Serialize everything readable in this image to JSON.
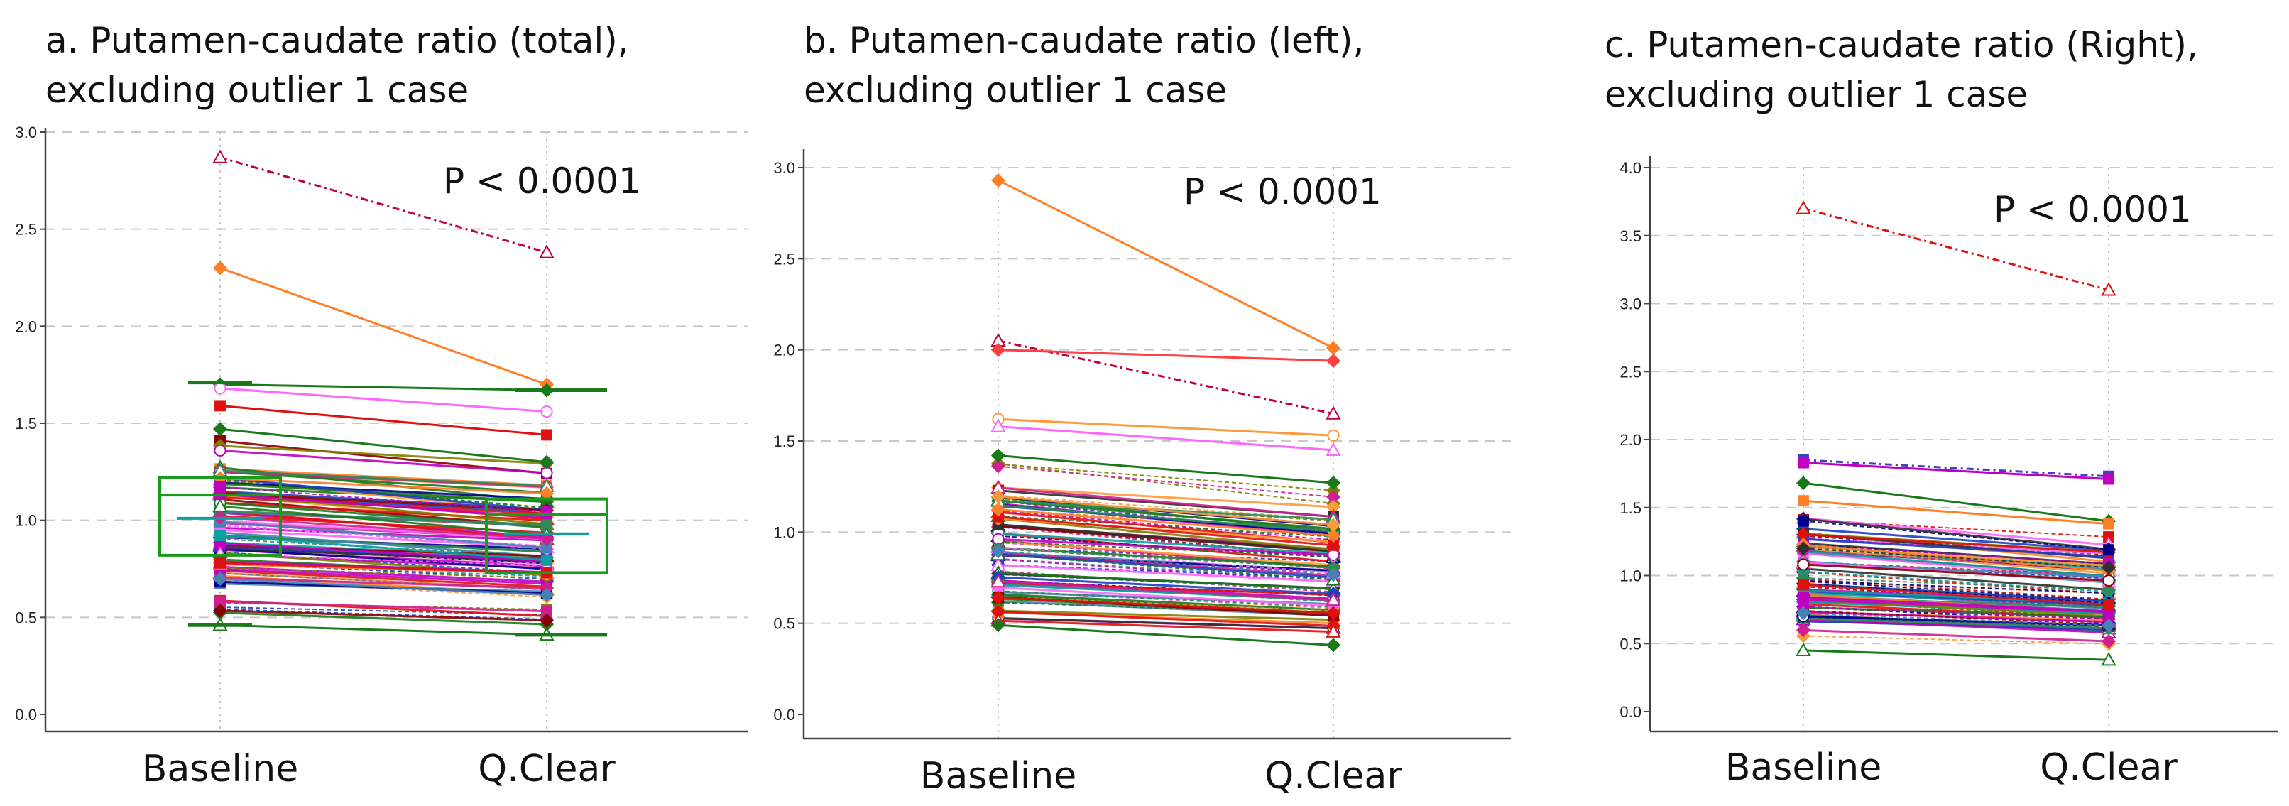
{
  "chart_data": [
    {
      "id": "a",
      "type": "line",
      "title_lines": [
        "a. Putamen-caudate ratio (total),",
        "excluding outlier 1 case"
      ],
      "categories": [
        "Baseline",
        "Q.Clear"
      ],
      "yticks": [
        "0.0",
        "0.5",
        "1.0",
        "1.5",
        "2.0",
        "2.5",
        "3.0"
      ],
      "ylim": [
        0,
        3.0
      ],
      "annotation": "P < 0.0001",
      "boxplots": [
        {
          "category": "Baseline",
          "q1": 0.82,
          "median": 1.13,
          "q3": 1.22,
          "whisker_low": 0.46,
          "whisker_high": 1.71
        },
        {
          "category": "Q.Clear",
          "q1": 0.73,
          "median": 1.03,
          "q3": 1.11,
          "whisker_low": 0.41,
          "whisker_high": 1.67
        }
      ],
      "mean_line": [
        1.01,
        0.93
      ],
      "highlighted_series": [
        {
          "baseline": 2.87,
          "qclear": 2.38,
          "marker": "triangle",
          "color": "#c00040",
          "dash": true
        },
        {
          "baseline": 2.3,
          "qclear": 1.7,
          "marker": "diamond",
          "color": "#ff7f27",
          "dash": false
        },
        {
          "baseline": 1.7,
          "qclear": 1.67,
          "marker": "diamond",
          "color": "#1a7a1a",
          "dash": false
        },
        {
          "baseline": 1.68,
          "qclear": 1.56,
          "marker": "circle",
          "color": "#ff66ff",
          "dash": false
        },
        {
          "baseline": 1.59,
          "qclear": 1.44,
          "marker": "square",
          "color": "#e01010",
          "dash": false
        },
        {
          "baseline": 1.47,
          "qclear": 1.3,
          "marker": "diamond",
          "color": "#1a7a1a",
          "dash": false
        },
        {
          "baseline": 0.46,
          "qclear": 0.41,
          "marker": "triangle",
          "color": "#1a7a1a",
          "dash": false
        }
      ],
      "bulk": {
        "count": 90,
        "baseline_range": [
          0.5,
          1.45
        ],
        "slope": 0.9,
        "seed": 11
      }
    },
    {
      "id": "b",
      "type": "line",
      "title_lines": [
        "b. Putamen-caudate ratio (left),",
        "excluding outlier 1 case"
      ],
      "categories": [
        "Baseline",
        "Q.Clear"
      ],
      "yticks": [
        "0.0",
        "0.5",
        "1.0",
        "1.5",
        "2.0",
        "2.5",
        "3.0"
      ],
      "ylim": [
        0,
        3.0
      ],
      "annotation": "P < 0.0001",
      "highlighted_series": [
        {
          "baseline": 2.93,
          "qclear": 2.01,
          "marker": "diamond",
          "color": "#ff7f27",
          "dash": false
        },
        {
          "baseline": 2.05,
          "qclear": 1.65,
          "marker": "triangle",
          "color": "#c00040",
          "dash": true
        },
        {
          "baseline": 2.0,
          "qclear": 1.94,
          "marker": "diamond",
          "color": "#ff4040",
          "dash": false
        },
        {
          "baseline": 1.62,
          "qclear": 1.53,
          "marker": "circle",
          "color": "#ff9a3c",
          "dash": false
        },
        {
          "baseline": 1.58,
          "qclear": 1.45,
          "marker": "triangle",
          "color": "#ff66ff",
          "dash": false
        },
        {
          "baseline": 1.42,
          "qclear": 1.27,
          "marker": "diamond",
          "color": "#1a7a1a",
          "dash": false
        },
        {
          "baseline": 0.49,
          "qclear": 0.38,
          "marker": "diamond",
          "color": "#1a7a1a",
          "dash": false
        }
      ],
      "bulk": {
        "count": 90,
        "baseline_range": [
          0.47,
          1.4
        ],
        "slope": 0.88,
        "seed": 23
      }
    },
    {
      "id": "c",
      "type": "line",
      "title_lines": [
        "c. Putamen-caudate ratio (Right),",
        "excluding outlier 1 case"
      ],
      "categories": [
        "Baseline",
        "Q.Clear"
      ],
      "yticks": [
        "0.0",
        "0.5",
        "1.0",
        "1.5",
        "2.0",
        "2.5",
        "3.0",
        "3.5",
        "4.0"
      ],
      "ylim": [
        0,
        4.0
      ],
      "annotation": "P < 0.0001",
      "highlighted_series": [
        {
          "baseline": 3.7,
          "qclear": 3.1,
          "marker": "triangle",
          "color": "#e01010",
          "dash": true
        },
        {
          "baseline": 1.85,
          "qclear": 1.73,
          "marker": "square",
          "color": "#4040c0",
          "dash": true
        },
        {
          "baseline": 1.83,
          "qclear": 1.71,
          "marker": "square",
          "color": "#c000c0",
          "dash": false
        },
        {
          "baseline": 1.68,
          "qclear": 1.4,
          "marker": "diamond",
          "color": "#1a7a1a",
          "dash": false
        },
        {
          "baseline": 1.55,
          "qclear": 1.38,
          "marker": "square",
          "color": "#ff7f27",
          "dash": false
        },
        {
          "baseline": 0.45,
          "qclear": 0.38,
          "marker": "triangle",
          "color": "#1a7a1a",
          "dash": false
        }
      ],
      "bulk": {
        "count": 90,
        "baseline_range": [
          0.47,
          1.5
        ],
        "slope": 0.88,
        "seed": 37
      }
    }
  ],
  "palette": [
    "#1a7a1a",
    "#e01010",
    "#1f3fbf",
    "#ff7f27",
    "#ff66ff",
    "#8b0000",
    "#00008b",
    "#0aa0a0",
    "#808000",
    "#c000c0",
    "#ff9a3c",
    "#303030",
    "#2e8b57",
    "#d02090",
    "#4682b4"
  ],
  "axis_color": "#444444",
  "grid_color": "#c8c8c8"
}
